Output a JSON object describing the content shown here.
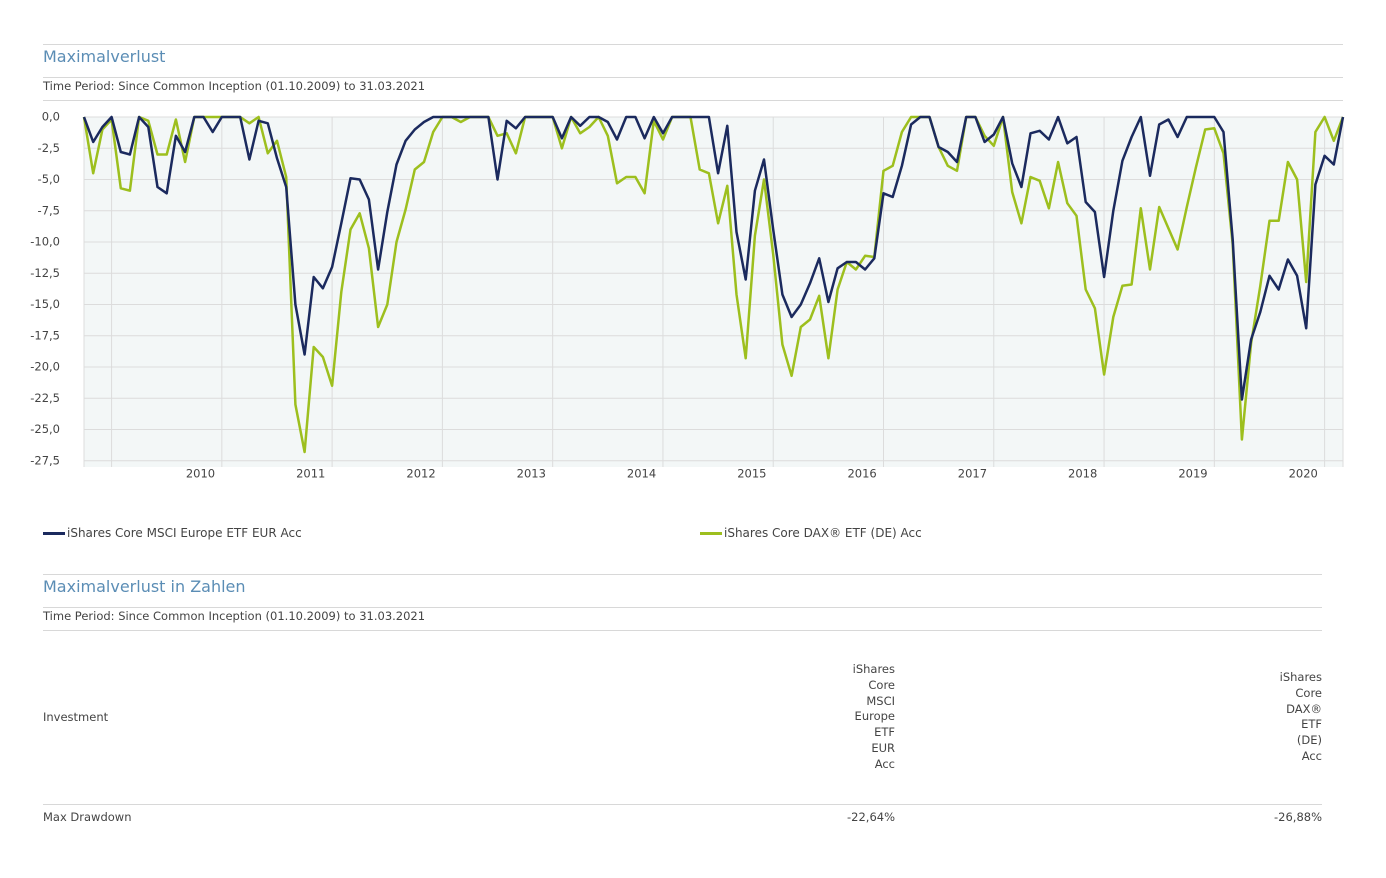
{
  "chart_data": {
    "type": "line",
    "title": "Maximalverlust",
    "subtitle": "Time Period: Since Common Inception (01.10.2009) to 31.03.2021",
    "categories": [
      null,
      null,
      null,
      null,
      null,
      null,
      null,
      null,
      null,
      null,
      null,
      null,
      null,
      "2010",
      null,
      null,
      null,
      null,
      null,
      null,
      null,
      null,
      null,
      null,
      null,
      "2011",
      null,
      null,
      null,
      null,
      null,
      null,
      null,
      null,
      null,
      null,
      null,
      "2012",
      null,
      null,
      null,
      null,
      null,
      null,
      null,
      null,
      null,
      null,
      null,
      "2013",
      null,
      null,
      null,
      null,
      null,
      null,
      null,
      null,
      null,
      null,
      null,
      "2014",
      null,
      null,
      null,
      null,
      null,
      null,
      null,
      null,
      null,
      null,
      null,
      "2015",
      null,
      null,
      null,
      null,
      null,
      null,
      null,
      null,
      null,
      null,
      null,
      "2016",
      null,
      null,
      null,
      null,
      null,
      null,
      null,
      null,
      null,
      null,
      null,
      "2017",
      null,
      null,
      null,
      null,
      null,
      null,
      null,
      null,
      null,
      null,
      null,
      "2018",
      null,
      null,
      null,
      null,
      null,
      null,
      null,
      null,
      null,
      null,
      null,
      "2019",
      null,
      null,
      null,
      null,
      null,
      null,
      null,
      null,
      null,
      null,
      null,
      "2020",
      null,
      null,
      null,
      null
    ],
    "series": [
      {
        "name": "iShares Core MSCI Europe ETF EUR Acc",
        "color": "#1b2a5e",
        "values": [
          0,
          -2,
          -0.8,
          0,
          -2.8,
          -3,
          0,
          -0.8,
          -5.6,
          -6.1,
          -1.5,
          -2.8,
          0,
          0,
          -1.2,
          0,
          0,
          0,
          -3.4,
          -0.3,
          -0.5,
          -3.3,
          -5.6,
          -15,
          -19,
          -12.8,
          -13.7,
          -12,
          -8.5,
          -4.9,
          -5,
          -6.6,
          -12.2,
          -7.6,
          -3.8,
          -1.9,
          -1,
          -0.4,
          0,
          0,
          0,
          0,
          0,
          0,
          0,
          -5,
          -0.3,
          -0.9,
          0,
          0,
          0,
          0,
          -1.7,
          0,
          -0.7,
          0,
          0,
          -0.4,
          -1.8,
          0,
          0,
          -1.7,
          0,
          -1.3,
          0,
          0,
          0,
          0,
          0,
          -4.5,
          -0.7,
          -9.2,
          -13,
          -5.9,
          -3.4,
          -9,
          -14.2,
          -16,
          -15,
          -13.3,
          -11.3,
          -14.8,
          -12.1,
          -11.6,
          -11.6,
          -12.2,
          -11.3,
          -6.1,
          -6.4,
          -3.9,
          -0.6,
          0,
          0,
          -2.4,
          -2.8,
          -3.6,
          0,
          0,
          -2,
          -1.4,
          0,
          -3.7,
          -5.6,
          -1.3,
          -1.1,
          -1.8,
          0,
          -2.1,
          -1.6,
          -6.8,
          -7.6,
          -12.8,
          -7.5,
          -3.5,
          -1.6,
          0,
          -4.7,
          -0.6,
          -0.2,
          -1.6,
          0,
          0,
          0,
          0,
          -1.2,
          -9.8,
          -22.6,
          -17.8,
          -15.6,
          -12.7,
          -13.8,
          -11.4,
          -12.7,
          -16.9,
          -5.4,
          -3.1,
          -3.8,
          0
        ]
      },
      {
        "name": "iShares Core DAX® ETF (DE) Acc",
        "color": "#9dbf1e",
        "values": [
          0,
          -4.5,
          -1,
          -0.2,
          -5.7,
          -5.9,
          0,
          -0.3,
          -3,
          -3,
          -0.2,
          -3.6,
          0,
          0,
          0,
          0,
          0,
          0,
          -0.5,
          0,
          -2.9,
          -1.9,
          -4.8,
          -23,
          -26.8,
          -18.4,
          -19.2,
          -21.5,
          -14,
          -9,
          -7.7,
          -10.5,
          -16.8,
          -15,
          -10,
          -7.4,
          -4.2,
          -3.6,
          -1.2,
          0,
          0,
          -0.4,
          0,
          0,
          0,
          -1.5,
          -1.3,
          -2.9,
          0,
          0,
          0,
          0,
          -2.5,
          0,
          -1.3,
          -0.8,
          0,
          -1.5,
          -5.3,
          -4.8,
          -4.8,
          -6.1,
          -0.3,
          -1.8,
          0,
          0,
          0,
          -4.2,
          -4.5,
          -8.5,
          -5.5,
          -14.2,
          -19.3,
          -9.5,
          -5,
          -11,
          -18.2,
          -20.7,
          -16.8,
          -16.2,
          -14.3,
          -19.3,
          -13.8,
          -11.6,
          -12.2,
          -11.1,
          -11.2,
          -4.3,
          -3.9,
          -1.2,
          0,
          0,
          0,
          -2.4,
          -3.9,
          -4.3,
          0,
          0,
          -1.5,
          -2.3,
          0,
          -6,
          -8.5,
          -4.8,
          -5.1,
          -7.3,
          -3.6,
          -6.9,
          -7.9,
          -13.8,
          -15.3,
          -20.6,
          -16,
          -13.5,
          -13.4,
          -7.3,
          -12.2,
          -7.2,
          -8.9,
          -10.6,
          -7.2,
          -4,
          -1,
          -0.9,
          -2.9,
          -10.2,
          -25.8,
          -18.1,
          -13.5,
          -8.3,
          -8.3,
          -3.6,
          -5,
          -13.2,
          -1.2,
          0,
          -1.9,
          0
        ]
      }
    ],
    "ylim": [
      -28,
      0
    ],
    "yticks": [
      {
        "value": 0,
        "label": "0,0"
      },
      {
        "value": -2.5,
        "label": "-2,5"
      },
      {
        "value": -5,
        "label": "-5,0"
      },
      {
        "value": -7.5,
        "label": "-7,5"
      },
      {
        "value": -10,
        "label": "-10,0"
      },
      {
        "value": -12.5,
        "label": "-12,5"
      },
      {
        "value": -15,
        "label": "-15,0"
      },
      {
        "value": -17.5,
        "label": "-17,5"
      },
      {
        "value": -20,
        "label": "-20,0"
      },
      {
        "value": -22.5,
        "label": "-22,5"
      },
      {
        "value": -25,
        "label": "-25,0"
      },
      {
        "value": -27.5,
        "label": "-27,5"
      }
    ],
    "grid": true,
    "legend": "bottom"
  },
  "table": {
    "title": "Maximalverlust in Zahlen",
    "subtitle": "Time Period: Since Common Inception (01.10.2009) to 31.03.2021",
    "header": [
      "Investment",
      "iShares Core MSCI Europe ETF EUR Acc",
      "iShares Core DAX® ETF (DE) Acc"
    ],
    "rows": [
      [
        "Max Drawdown",
        "-22,64%",
        "-26,88%"
      ]
    ]
  }
}
